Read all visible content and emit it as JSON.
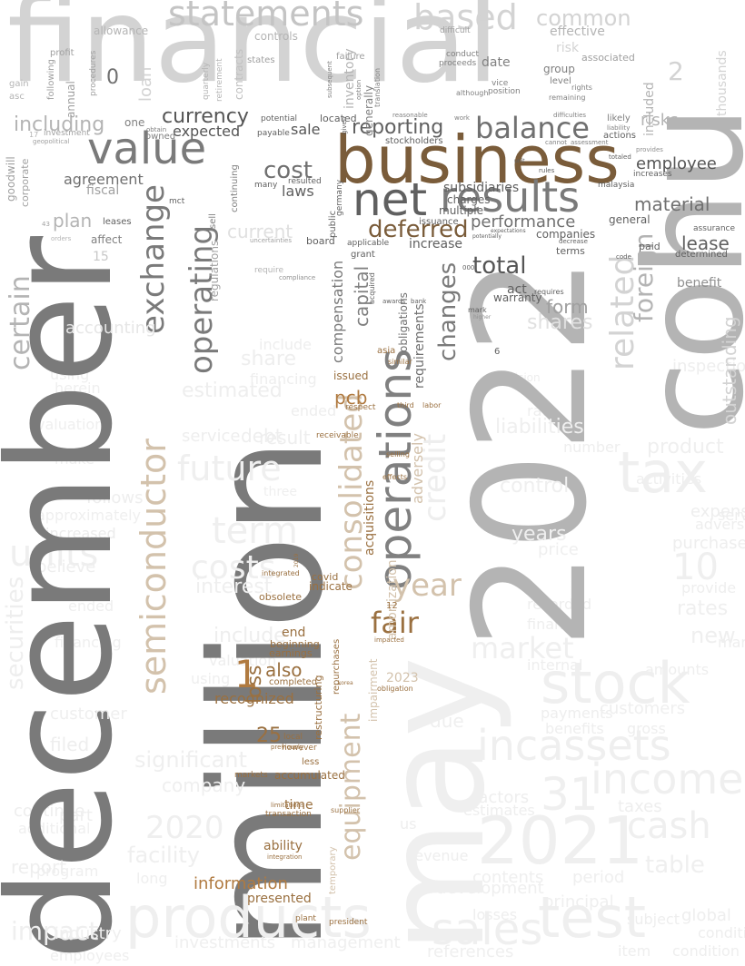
{
  "palette": {
    "dark_gray": "#7a7a7a",
    "mid_gray": "#b3b3b3",
    "light_gray": "#d3d3d3",
    "faint_gray": "#eeeeee",
    "brown": "#7a5c3a",
    "tan": "#d3c2ac",
    "dark_text": "#555555",
    "orange": "#b07a40"
  },
  "words": [
    {
      "text": "financial"
    },
    {
      "text": "december"
    },
    {
      "text": "million"
    },
    {
      "text": "2022"
    },
    {
      "text": "may"
    },
    {
      "text": "cohu"
    },
    {
      "text": "business"
    },
    {
      "text": "net"
    },
    {
      "text": "operations"
    },
    {
      "text": "value"
    },
    {
      "text": "results"
    },
    {
      "text": "statements"
    },
    {
      "text": "based"
    },
    {
      "text": "balance"
    },
    {
      "text": "semiconductor"
    },
    {
      "text": "consolidated"
    },
    {
      "text": "operating"
    },
    {
      "text": "exchange"
    },
    {
      "text": "certain"
    },
    {
      "text": "stock"
    },
    {
      "text": "2021"
    },
    {
      "text": "products"
    },
    {
      "text": "test"
    },
    {
      "text": "tax"
    },
    {
      "text": "income"
    },
    {
      "text": "incassets"
    },
    {
      "text": "31"
    },
    {
      "text": "cash"
    },
    {
      "text": "sales"
    },
    {
      "text": "fair"
    },
    {
      "text": "year"
    },
    {
      "text": "equipment"
    },
    {
      "text": "credit"
    },
    {
      "text": "changes"
    },
    {
      "text": "deferred"
    },
    {
      "text": "total"
    },
    {
      "text": "currency"
    },
    {
      "text": "reporting"
    },
    {
      "text": "cost"
    },
    {
      "text": "including"
    },
    {
      "text": "material"
    },
    {
      "text": "employee"
    },
    {
      "text": "lease"
    },
    {
      "text": "related"
    },
    {
      "text": "foreign"
    },
    {
      "text": "future"
    },
    {
      "text": "term"
    },
    {
      "text": "costs"
    },
    {
      "text": "market"
    },
    {
      "text": "performance"
    },
    {
      "text": "subsidiaries"
    },
    {
      "text": "laws"
    },
    {
      "text": "plan"
    },
    {
      "text": "agreement"
    },
    {
      "text": "fiscal"
    },
    {
      "text": "expected"
    },
    {
      "text": "sale"
    },
    {
      "text": "pcb"
    },
    {
      "text": "also"
    },
    {
      "text": "loss"
    },
    {
      "text": "recognized"
    },
    {
      "text": "25"
    },
    {
      "text": "ability"
    },
    {
      "text": "time"
    },
    {
      "text": "information"
    },
    {
      "text": "presented"
    },
    {
      "text": "accumulated"
    },
    {
      "text": "issued"
    },
    {
      "text": "form"
    },
    {
      "text": "capital"
    },
    {
      "text": "compensation"
    },
    {
      "text": "requirements"
    },
    {
      "text": "obligations"
    },
    {
      "text": "current"
    },
    {
      "text": "increase"
    },
    {
      "text": "act"
    },
    {
      "text": "warranty"
    },
    {
      "text": "outstanding"
    },
    {
      "text": "benefit"
    },
    {
      "text": "risks"
    },
    {
      "text": "common"
    },
    {
      "text": "effective"
    },
    {
      "text": "generally"
    },
    {
      "text": "inventory"
    },
    {
      "text": "loan"
    },
    {
      "text": "annual"
    },
    {
      "text": "date"
    },
    {
      "text": "group"
    },
    {
      "text": "level"
    },
    {
      "text": "securities"
    },
    {
      "text": "impact"
    },
    {
      "text": "customer"
    },
    {
      "text": "customers"
    },
    {
      "text": "company"
    },
    {
      "text": "significant"
    },
    {
      "text": "2020"
    },
    {
      "text": "facility"
    },
    {
      "text": "report"
    },
    {
      "text": "industry"
    },
    {
      "text": "investments"
    },
    {
      "text": "management"
    },
    {
      "text": "contents"
    },
    {
      "text": "period"
    },
    {
      "text": "table"
    },
    {
      "text": "principal"
    },
    {
      "text": "development"
    },
    {
      "text": "10"
    },
    {
      "text": "rates"
    },
    {
      "text": "new"
    },
    {
      "text": "product"
    },
    {
      "text": "liabilities"
    },
    {
      "text": "control"
    },
    {
      "text": "years"
    },
    {
      "text": "price"
    },
    {
      "text": "due"
    },
    {
      "text": "interest"
    },
    {
      "text": "debt"
    },
    {
      "text": "share"
    },
    {
      "text": "shares"
    },
    {
      "text": "accounting"
    },
    {
      "text": "amortization"
    },
    {
      "text": "acquisitions"
    },
    {
      "text": "adversely"
    },
    {
      "text": "impairment"
    },
    {
      "text": "indicate"
    },
    {
      "text": "covid"
    },
    {
      "text": "obsolete"
    },
    {
      "text": "end"
    },
    {
      "text": "beginning"
    },
    {
      "text": "earnings"
    },
    {
      "text": "completed"
    },
    {
      "text": "restructuring"
    },
    {
      "text": "repurchases"
    },
    {
      "text": "local"
    },
    {
      "text": "however"
    },
    {
      "text": "less"
    },
    {
      "text": "markets"
    },
    {
      "text": "transaction"
    },
    {
      "text": "plant"
    },
    {
      "text": "temporary"
    },
    {
      "text": "2023"
    },
    {
      "text": "1"
    },
    {
      "text": "0"
    },
    {
      "text": "2"
    },
    {
      "text": "one"
    },
    {
      "text": "owned"
    },
    {
      "text": "goodwill"
    },
    {
      "text": "corporate"
    },
    {
      "text": "leases"
    },
    {
      "text": "affect"
    },
    {
      "text": "general"
    },
    {
      "text": "companies"
    },
    {
      "text": "paid"
    },
    {
      "text": "terms"
    },
    {
      "text": "determined"
    },
    {
      "text": "charges"
    },
    {
      "text": "multiple"
    },
    {
      "text": "grant"
    },
    {
      "text": "applicable"
    },
    {
      "text": "issuance"
    },
    {
      "text": "board"
    },
    {
      "text": "payable"
    },
    {
      "text": "located"
    },
    {
      "text": "potential"
    },
    {
      "text": "stockholders"
    },
    {
      "text": "mct"
    },
    {
      "text": "many"
    },
    {
      "text": "resulted"
    },
    {
      "text": "public"
    },
    {
      "text": "germany"
    },
    {
      "text": "regulations"
    },
    {
      "text": "sell"
    },
    {
      "text": "continuing"
    },
    {
      "text": "contracts"
    },
    {
      "text": "controls"
    },
    {
      "text": "states"
    },
    {
      "text": "allowance"
    },
    {
      "text": "profit"
    },
    {
      "text": "following"
    },
    {
      "text": "procedures"
    },
    {
      "text": "investment"
    },
    {
      "text": "failure"
    },
    {
      "text": "risk"
    },
    {
      "text": "associated"
    },
    {
      "text": "proceeds"
    },
    {
      "text": "conduct"
    },
    {
      "text": "position"
    },
    {
      "text": "included"
    },
    {
      "text": "likely"
    },
    {
      "text": "actions"
    },
    {
      "text": "increases"
    },
    {
      "text": "malaysia"
    },
    {
      "text": "assurance"
    },
    {
      "text": "receivable"
    },
    {
      "text": "respect"
    },
    {
      "text": "third"
    },
    {
      "text": "labor"
    },
    {
      "text": "asia"
    },
    {
      "text": "selling"
    },
    {
      "text": "effects"
    },
    {
      "text": "integrated"
    },
    {
      "text": "similar"
    },
    {
      "text": "12"
    },
    {
      "text": "15"
    },
    {
      "text": "thousands"
    },
    {
      "text": "mark"
    },
    {
      "text": "requires"
    },
    {
      "text": "bank"
    },
    {
      "text": "awards"
    },
    {
      "text": "acquired"
    },
    {
      "text": "compliance"
    },
    {
      "text": "president"
    },
    {
      "text": "supplier"
    },
    {
      "text": "integration"
    },
    {
      "text": "limitations"
    },
    {
      "text": "previously"
    },
    {
      "text": "impacted"
    },
    {
      "text": "rights"
    },
    {
      "text": "remaining"
    },
    {
      "text": "vice"
    },
    {
      "text": "although"
    },
    {
      "text": "difficult"
    },
    {
      "text": "retirement"
    },
    {
      "text": "quarterly"
    },
    {
      "text": "subsequent"
    },
    {
      "text": "translation"
    },
    {
      "text": "rules"
    },
    {
      "text": "decrease"
    },
    {
      "text": "code"
    },
    {
      "text": "totaled"
    },
    {
      "text": "provides"
    },
    {
      "text": "cannot"
    },
    {
      "text": "assessment"
    },
    {
      "text": "liability"
    },
    {
      "text": "difficulties"
    },
    {
      "text": "work"
    },
    {
      "text": "reasonable"
    },
    {
      "text": "obtain"
    },
    {
      "text": "geopolitical"
    },
    {
      "text": "uncertainties"
    },
    {
      "text": "require"
    },
    {
      "text": "expectations"
    },
    {
      "text": "potentially"
    },
    {
      "text": "orders"
    },
    {
      "text": "17"
    },
    {
      "text": "asc"
    },
    {
      "text": "gain"
    },
    {
      "text": "43"
    },
    {
      "text": "6"
    },
    {
      "text": "000"
    },
    {
      "text": "higher"
    },
    {
      "text": "unit"
    },
    {
      "text": "given"
    },
    {
      "text": "option"
    },
    {
      "text": "provision"
    },
    {
      "text": "obligation"
    },
    {
      "text": "korea"
    },
    {
      "text": "2019"
    },
    {
      "text": "addition"
    },
    {
      "text": "amount"
    },
    {
      "text": "existing"
    },
    {
      "text": "commission"
    },
    {
      "text": "internal"
    },
    {
      "text": "recorded"
    },
    {
      "text": "finance"
    },
    {
      "text": "amounts"
    },
    {
      "text": "gross"
    },
    {
      "text": "benefits"
    },
    {
      "text": "payments"
    },
    {
      "text": "factors"
    },
    {
      "text": "estimates"
    },
    {
      "text": "us"
    },
    {
      "text": "revenue"
    },
    {
      "text": "losses"
    },
    {
      "text": "subject"
    },
    {
      "text": "conditions"
    },
    {
      "text": "item"
    },
    {
      "text": "condition"
    },
    {
      "text": "global"
    },
    {
      "text": "taxes"
    },
    {
      "text": "expense"
    },
    {
      "text": "adverse"
    },
    {
      "text": "purchase"
    },
    {
      "text": "provide"
    },
    {
      "text": "manufacturing"
    },
    {
      "text": "inspection"
    },
    {
      "text": "rate"
    },
    {
      "text": "number"
    },
    {
      "text": "activities"
    },
    {
      "text": "services"
    },
    {
      "text": "estimated"
    },
    {
      "text": "service"
    },
    {
      "text": "result"
    },
    {
      "text": "within"
    },
    {
      "text": "approximately"
    },
    {
      "text": "used"
    },
    {
      "text": "make"
    },
    {
      "text": "three"
    },
    {
      "text": "required"
    },
    {
      "text": "units"
    },
    {
      "text": "follows"
    },
    {
      "text": "increased"
    },
    {
      "text": "believe"
    },
    {
      "text": "continue"
    },
    {
      "text": "additional"
    },
    {
      "text": "part"
    },
    {
      "text": "long"
    },
    {
      "text": "program"
    },
    {
      "text": "employees"
    },
    {
      "text": "references"
    },
    {
      "text": "filed"
    },
    {
      "text": "valuation"
    },
    {
      "text": "include"
    },
    {
      "text": "using"
    },
    {
      "text": "herein"
    },
    {
      "text": "financing"
    },
    {
      "text": "ended"
    }
  ]
}
